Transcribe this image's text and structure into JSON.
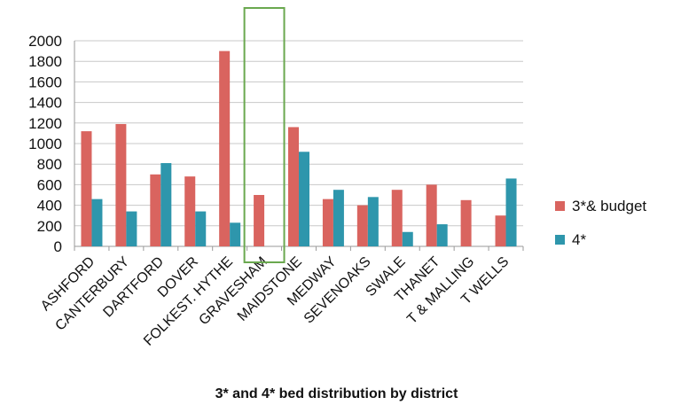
{
  "chart_data": {
    "type": "bar",
    "title": "3* and 4* bed distribution by district",
    "xlabel": "",
    "ylabel": "",
    "ylim": [
      0,
      2000
    ],
    "yticks": [
      0,
      200,
      400,
      600,
      800,
      1000,
      1200,
      1400,
      1600,
      1800,
      2000
    ],
    "grid": true,
    "legend": "right",
    "categories": [
      "ASHFORD",
      "CANTERBURY",
      "DARTFORD",
      "DOVER",
      "FOLKEST. HYTHE",
      "GRAVESHAM",
      "MAIDSTONE",
      "MEDWAY",
      "SEVENOAKS",
      "SWALE",
      "THANET",
      "T & MALLING",
      "T WELLS"
    ],
    "series": [
      {
        "name": "3*& budget",
        "color": "#d9645f",
        "values": [
          1120,
          1190,
          700,
          680,
          1900,
          500,
          1160,
          460,
          400,
          550,
          600,
          450,
          300
        ]
      },
      {
        "name": "4*",
        "color": "#2e96ac",
        "values": [
          460,
          340,
          810,
          340,
          230,
          0,
          920,
          550,
          480,
          140,
          215,
          0,
          660
        ]
      }
    ],
    "annotations": [
      {
        "type": "highlight-box",
        "category": "GRAVESHAM",
        "color": "#6aa84f"
      }
    ]
  }
}
